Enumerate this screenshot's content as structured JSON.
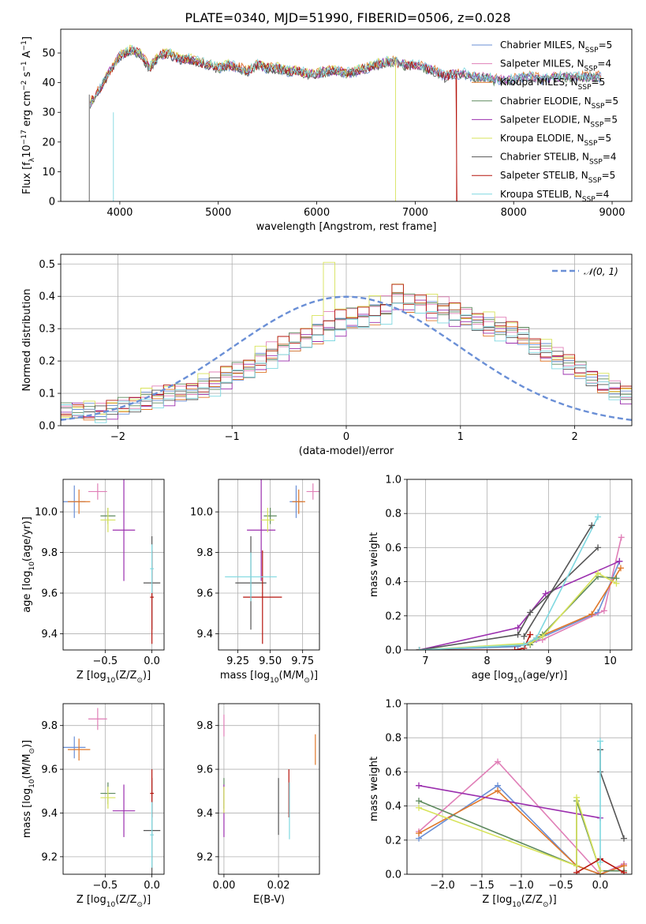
{
  "figure": {
    "title": "PLATE=0340, MJD=51990, FIBERID=0506, z=0.028",
    "legend_models": [
      {
        "name": "Chabrier MILES, N",
        "sub": "SSP",
        "eq": "=5",
        "color": "#6a8fd6"
      },
      {
        "name": "Salpeter MILES, N",
        "sub": "SSP",
        "eq": "=4",
        "color": "#e07fb7"
      },
      {
        "name": "Kroupa MILES, N",
        "sub": "SSP",
        "eq": "=5",
        "color": "#e0782a"
      },
      {
        "name": "Chabrier ELODIE, N",
        "sub": "SSP",
        "eq": "=5",
        "color": "#5e8a5e"
      },
      {
        "name": "Salpeter ELODIE, N",
        "sub": "SSP",
        "eq": "=5",
        "color": "#9b2fae"
      },
      {
        "name": "Kroupa ELODIE, N",
        "sub": "SSP",
        "eq": "=5",
        "color": "#d7e35a"
      },
      {
        "name": "Chabrier STELIB, N",
        "sub": "SSP",
        "eq": "=4",
        "color": "#555555"
      },
      {
        "name": "Salpeter STELIB, N",
        "sub": "SSP",
        "eq": "=5",
        "color": "#b5140d"
      },
      {
        "name": "Kroupa STELIB, N",
        "sub": "SSP",
        "eq": "=4",
        "color": "#7fd8e0"
      }
    ]
  },
  "chart_data": [
    {
      "id": "spectrum",
      "type": "line",
      "xlabel": "wavelength [Angstrom, rest frame]",
      "ylabel": "Flux [f",
      "ylabel_sub": "λ",
      "ylabel_mid": "10",
      "ylabel_sup": "−17",
      "ylabel_tail": " erg cm",
      "ylabel_sup2": "−2",
      "ylabel_tail2": " s",
      "ylabel_sup3": "−1",
      "ylabel_tail3": " A",
      "ylabel_sup4": "−1",
      "ylabel_end": "]",
      "xlim": [
        3400,
        9200
      ],
      "ylim": [
        0,
        58
      ],
      "xticks": [
        4000,
        5000,
        6000,
        7000,
        8000,
        9000
      ],
      "yticks": [
        0,
        10,
        20,
        30,
        40,
        50
      ],
      "x": [
        3700,
        3800,
        3900,
        4000,
        4100,
        4200,
        4300,
        4400,
        4500,
        4600,
        4700,
        4800,
        4900,
        5000,
        5100,
        5200,
        5300,
        5400,
        5500,
        5600,
        5700,
        5800,
        5900,
        6000,
        6100,
        6200,
        6300,
        6400,
        6500,
        6600,
        6700,
        6800,
        6900,
        7000,
        7100,
        7200,
        7300,
        7400,
        7500,
        7600,
        7700,
        7800,
        7900,
        8000,
        8100,
        8200,
        8300,
        8400,
        8500,
        8600,
        8700,
        8800,
        8900
      ],
      "y": [
        33,
        38,
        44,
        49,
        51,
        50,
        45,
        49,
        50,
        48,
        48,
        47,
        46,
        45,
        46,
        45,
        44,
        46,
        45,
        45,
        44,
        44,
        43,
        43,
        44,
        44,
        43,
        44,
        45,
        46,
        47,
        47,
        46,
        46,
        45,
        44,
        42,
        43,
        43,
        42,
        42,
        41,
        41,
        41,
        42,
        42,
        41,
        42,
        42,
        42,
        42,
        42,
        42
      ]
    },
    {
      "id": "residuals",
      "type": "bar",
      "xlabel": "(data-model)/error",
      "ylabel": "Normed distribution",
      "xlim": [
        -2.5,
        2.5
      ],
      "ylim": [
        0,
        0.53
      ],
      "xticks": [
        -2,
        -1,
        0,
        1,
        2
      ],
      "yticks": [
        0.0,
        0.1,
        0.2,
        0.3,
        0.4,
        0.5
      ],
      "legend": "𝒩(0, 1)",
      "bin_width": 0.1,
      "bin_start": -2.5,
      "values": [
        0.045,
        0.05,
        0.045,
        0.04,
        0.05,
        0.06,
        0.07,
        0.08,
        0.09,
        0.095,
        0.1,
        0.11,
        0.12,
        0.13,
        0.15,
        0.165,
        0.18,
        0.2,
        0.22,
        0.24,
        0.255,
        0.275,
        0.29,
        0.31,
        0.32,
        0.33,
        0.34,
        0.35,
        0.36,
        0.4,
        0.375,
        0.38,
        0.36,
        0.36,
        0.345,
        0.335,
        0.325,
        0.31,
        0.3,
        0.29,
        0.275,
        0.25,
        0.23,
        0.21,
        0.19,
        0.17,
        0.15,
        0.13,
        0.11,
        0.095,
        0.08,
        0.07,
        0.06,
        0.05,
        0.045
      ],
      "series_offsets": [
        0.0,
        0.02,
        -0.015,
        0.01,
        -0.02,
        0.03,
        -0.01,
        0.015,
        -0.025
      ]
    },
    {
      "id": "age-Z",
      "type": "scatter",
      "xlabel": "Z [log",
      "xlabel_sub": "10",
      "xlabel_tail": "(Z/Z",
      "xlabel_sun": "⊙",
      "xlabel_end": ")]",
      "ylabel": "age  [log",
      "ylabel_sub": "10",
      "ylabel_tail": "(age/yr)]",
      "xlim": [
        -0.95,
        0.13
      ],
      "ylim": [
        9.32,
        10.16
      ],
      "xticks": [
        -0.5,
        0.0
      ],
      "xtick_labels": [
        "−0.5",
        "0.0"
      ],
      "yticks": [
        9.4,
        9.6,
        9.8,
        10.0
      ],
      "points": [
        {
          "x": -0.83,
          "y": 10.05,
          "ex": 0.12,
          "ey": 0.08,
          "c": 0
        },
        {
          "x": -0.58,
          "y": 10.1,
          "ex": 0.1,
          "ey": 0.04,
          "c": 1
        },
        {
          "x": -0.78,
          "y": 10.05,
          "ex": 0.12,
          "ey": 0.06,
          "c": 2
        },
        {
          "x": -0.47,
          "y": 9.98,
          "ex": 0.08,
          "ey": 0.04,
          "c": 3
        },
        {
          "x": -0.3,
          "y": 9.91,
          "ex": 0.12,
          "ey": 0.25,
          "c": 4
        },
        {
          "x": -0.47,
          "y": 9.96,
          "ex": 0.08,
          "ey": 0.06,
          "c": 5
        },
        {
          "x": 0.0,
          "y": 9.65,
          "ex": 0.09,
          "ey": 0.23,
          "c": 6
        },
        {
          "x": 0.0,
          "y": 9.58,
          "ex": 0.02,
          "ey": 0.23,
          "c": 7
        },
        {
          "x": 0.0,
          "y": 9.72,
          "ex": 0.02,
          "ey": 0.12,
          "c": 8
        }
      ]
    },
    {
      "id": "age-mass",
      "type": "scatter",
      "xlabel": "mass [log",
      "xlabel_sub": "10",
      "xlabel_tail": "(M/M",
      "xlabel_sun": "⊙",
      "xlabel_end": ")]",
      "xlim": [
        9.1,
        9.88
      ],
      "ylim": [
        9.32,
        10.16
      ],
      "xticks": [
        9.25,
        9.5,
        9.75
      ],
      "xtick_labels": [
        "9.25",
        "9.50",
        "9.75"
      ],
      "yticks": [
        9.4,
        9.6,
        9.8,
        10.0
      ],
      "points": [
        {
          "x": 9.7,
          "y": 10.05,
          "ex": 0.05,
          "ey": 0.08,
          "c": 0
        },
        {
          "x": 9.83,
          "y": 10.1,
          "ex": 0.05,
          "ey": 0.04,
          "c": 1
        },
        {
          "x": 9.72,
          "y": 10.05,
          "ex": 0.05,
          "ey": 0.06,
          "c": 2
        },
        {
          "x": 9.5,
          "y": 9.98,
          "ex": 0.05,
          "ey": 0.04,
          "c": 3
        },
        {
          "x": 9.43,
          "y": 9.91,
          "ex": 0.11,
          "ey": 0.25,
          "c": 4
        },
        {
          "x": 9.48,
          "y": 9.96,
          "ex": 0.05,
          "ey": 0.06,
          "c": 5
        },
        {
          "x": 9.35,
          "y": 9.65,
          "ex": 0.12,
          "ey": 0.23,
          "c": 6
        },
        {
          "x": 9.44,
          "y": 9.58,
          "ex": 0.15,
          "ey": 0.23,
          "c": 7
        },
        {
          "x": 9.35,
          "y": 9.68,
          "ex": 0.2,
          "ey": 0.12,
          "c": 8
        }
      ]
    },
    {
      "id": "weight-age",
      "type": "line",
      "xlabel": "age  [log",
      "xlabel_sub": "10",
      "xlabel_tail": "(age/yr)]",
      "ylabel": "mass weight",
      "xlim": [
        6.7,
        10.35
      ],
      "ylim": [
        0,
        1
      ],
      "xticks": [
        7,
        8,
        9,
        10
      ],
      "yticks": [
        0.0,
        0.2,
        0.4,
        0.6,
        0.8,
        1.0
      ],
      "series": [
        {
          "c": 0,
          "x": [
            6.9,
            8.5,
            8.8,
            9.8,
            10.15
          ],
          "y": [
            0.0,
            0.02,
            0.06,
            0.22,
            0.52
          ]
        },
        {
          "c": 1,
          "x": [
            6.9,
            8.6,
            8.9,
            9.9,
            10.18
          ],
          "y": [
            0.0,
            0.03,
            0.06,
            0.23,
            0.66
          ]
        },
        {
          "c": 2,
          "x": [
            6.9,
            8.6,
            8.8,
            9.7,
            10.17
          ],
          "y": [
            0.0,
            0.03,
            0.07,
            0.21,
            0.48
          ]
        },
        {
          "c": 3,
          "x": [
            6.9,
            8.7,
            8.9,
            9.8,
            10.1
          ],
          "y": [
            0.0,
            0.03,
            0.09,
            0.43,
            0.42
          ]
        },
        {
          "c": 4,
          "x": [
            6.9,
            8.5,
            8.95,
            10.15
          ],
          "y": [
            0.0,
            0.13,
            0.33,
            0.52
          ]
        },
        {
          "c": 5,
          "x": [
            6.9,
            8.7,
            8.9,
            9.8,
            10.1
          ],
          "y": [
            0.0,
            0.04,
            0.08,
            0.45,
            0.39
          ]
        },
        {
          "c": 6,
          "x": [
            6.9,
            8.5,
            8.7,
            9.8
          ],
          "y": [
            0.0,
            0.09,
            0.22,
            0.6
          ]
        },
        {
          "c": 7,
          "x": [
            6.9,
            8.45,
            8.6,
            8.7
          ],
          "y": [
            0.0,
            0.0,
            0.01,
            0.09
          ]
        },
        {
          "c": 8,
          "x": [
            6.9,
            8.6,
            8.8,
            9.8
          ],
          "y": [
            0.0,
            0.03,
            0.07,
            0.78
          ]
        },
        {
          "c": 6,
          "x": [
            8.6,
            9.7
          ],
          "y": [
            0.08,
            0.73
          ]
        }
      ]
    },
    {
      "id": "mass-Z",
      "type": "scatter",
      "xlabel": "Z [log",
      "xlabel_sub": "10",
      "xlabel_tail": "(Z/Z",
      "xlabel_sun": "⊙",
      "xlabel_end": ")]",
      "ylabel": "mass [log",
      "ylabel_sub": "10",
      "ylabel_tail": "(M/M",
      "ylabel_sun": "⊙",
      "ylabel_end": ")]",
      "xlim": [
        -0.95,
        0.13
      ],
      "ylim": [
        9.12,
        9.9
      ],
      "xticks": [
        -0.5,
        0.0
      ],
      "xtick_labels": [
        "−0.5",
        "0.0"
      ],
      "yticks": [
        9.2,
        9.4,
        9.6,
        9.8
      ],
      "points": [
        {
          "x": -0.83,
          "y": 9.7,
          "ex": 0.12,
          "ey": 0.05,
          "c": 0
        },
        {
          "x": -0.58,
          "y": 9.83,
          "ex": 0.1,
          "ey": 0.05,
          "c": 1
        },
        {
          "x": -0.78,
          "y": 9.69,
          "ex": 0.12,
          "ey": 0.05,
          "c": 2
        },
        {
          "x": -0.47,
          "y": 9.49,
          "ex": 0.08,
          "ey": 0.05,
          "c": 3
        },
        {
          "x": -0.3,
          "y": 9.41,
          "ex": 0.12,
          "ey": 0.12,
          "c": 4
        },
        {
          "x": -0.47,
          "y": 9.47,
          "ex": 0.08,
          "ey": 0.05,
          "c": 5
        },
        {
          "x": 0.0,
          "y": 9.32,
          "ex": 0.09,
          "ey": 0.24,
          "c": 6
        },
        {
          "x": 0.0,
          "y": 9.49,
          "ex": 0.02,
          "ey": 0.11,
          "c": 7
        },
        {
          "x": 0.0,
          "y": 9.3,
          "ex": 0.02,
          "ey": 0.15,
          "c": 8
        }
      ]
    },
    {
      "id": "mass-EBV",
      "type": "scatter",
      "xlabel": "E(B-V)",
      "xlim": [
        -0.002,
        0.035
      ],
      "ylim": [
        9.12,
        9.9
      ],
      "xticks": [
        0.0,
        0.02
      ],
      "xtick_labels": [
        "0.00",
        "0.02"
      ],
      "yticks": [
        9.2,
        9.4,
        9.6,
        9.8
      ],
      "points": [
        {
          "x": 0.0,
          "y": 9.8,
          "ex": 0,
          "ey": 0.05,
          "c": 1
        },
        {
          "x": 0.0,
          "y": 9.49,
          "ex": 0,
          "ey": 0.07,
          "c": 3
        },
        {
          "x": 0.0,
          "y": 9.41,
          "ex": 0,
          "ey": 0.12,
          "c": 4
        },
        {
          "x": 0.0,
          "y": 9.46,
          "ex": 0,
          "ey": 0.06,
          "c": 5
        },
        {
          "x": 0.02,
          "y": 9.43,
          "ex": 0,
          "ey": 0.13,
          "c": 6
        },
        {
          "x": 0.0238,
          "y": 9.49,
          "ex": 0,
          "ey": 0.11,
          "c": 7
        },
        {
          "x": 0.024,
          "y": 9.41,
          "ex": 0,
          "ey": 0.13,
          "c": 8
        },
        {
          "x": 0.0335,
          "y": 9.69,
          "ex": 0,
          "ey": 0.07,
          "c": 2
        }
      ]
    },
    {
      "id": "weight-Z",
      "type": "line",
      "xlabel": "Z [log",
      "xlabel_sub": "10",
      "xlabel_tail": "(Z/Z",
      "xlabel_sun": "⊙",
      "xlabel_end": ")]",
      "ylabel": "mass weight",
      "xlim": [
        -2.45,
        0.4
      ],
      "ylim": [
        0,
        1
      ],
      "xticks": [
        -2.0,
        -1.5,
        -1.0,
        -0.5,
        0.0
      ],
      "xtick_labels": [
        "−2.0",
        "−1.5",
        "−1.0",
        "−0.5",
        "0.0"
      ],
      "yticks": [
        0.0,
        0.2,
        0.4,
        0.6,
        0.8,
        1.0
      ],
      "series": [
        {
          "c": 0,
          "x": [
            -2.3,
            -1.3,
            -0.3,
            0.0,
            0.3
          ],
          "y": [
            0.21,
            0.52,
            0.05,
            0.0,
            0.06
          ]
        },
        {
          "c": 1,
          "x": [
            -2.3,
            -1.3,
            0.0,
            0.3
          ],
          "y": [
            0.25,
            0.66,
            0.0,
            0.06
          ]
        },
        {
          "c": 2,
          "x": [
            -2.3,
            -1.3,
            -0.3,
            0.0,
            0.3
          ],
          "y": [
            0.24,
            0.49,
            0.05,
            0.0,
            0.05
          ]
        },
        {
          "c": 3,
          "x": [
            -2.3,
            -0.3,
            -0.3,
            0.0,
            0.3
          ],
          "y": [
            0.43,
            0.05,
            0.43,
            0.02,
            0.02
          ]
        },
        {
          "c": 4,
          "x": [
            -2.3,
            0.0
          ],
          "y": [
            0.52,
            0.33
          ]
        },
        {
          "c": 5,
          "x": [
            -2.3,
            -0.3,
            -0.3,
            0.0
          ],
          "y": [
            0.39,
            0.05,
            0.45,
            0.02
          ]
        },
        {
          "c": 6,
          "x": [
            0.0,
            0.0,
            0.3
          ],
          "y": [
            0.73,
            0.6,
            0.21
          ]
        },
        {
          "c": 7,
          "x": [
            -0.3,
            0.0,
            0.0,
            0.3
          ],
          "y": [
            0.01,
            0.09,
            0.09,
            0.01
          ]
        },
        {
          "c": 8,
          "x": [
            0.0,
            0.0
          ],
          "y": [
            0.78,
            0.07
          ]
        }
      ]
    }
  ]
}
